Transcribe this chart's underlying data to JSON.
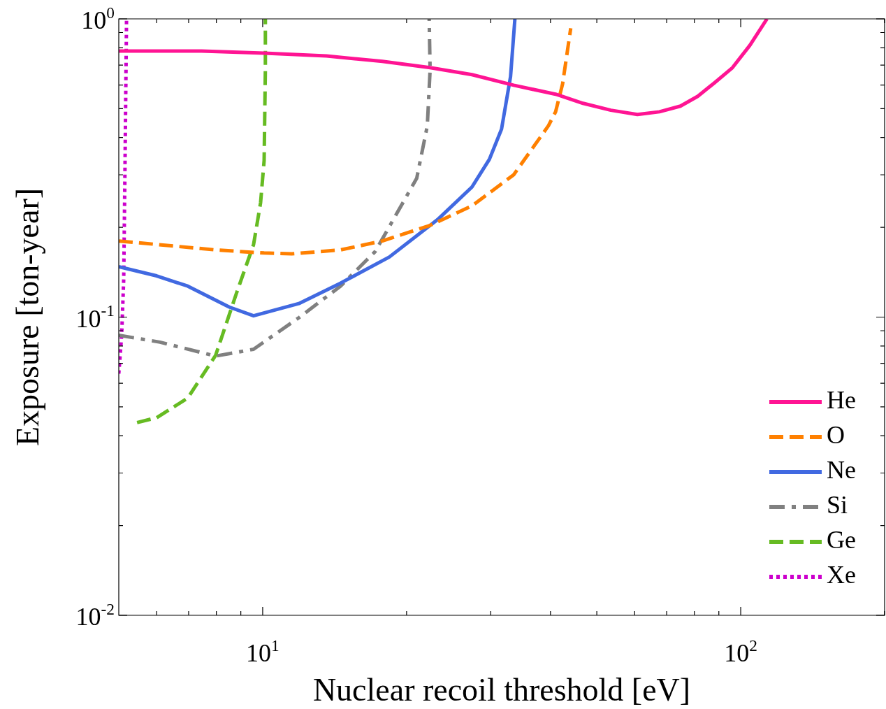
{
  "chart_data": {
    "type": "line",
    "xlabel": "Nuclear recoil threshold [eV]",
    "ylabel": "Exposure [ton-year]",
    "log": "xy",
    "grid": false,
    "legend": "bottom right",
    "marker": "none",
    "xlim": [
      5,
      200
    ],
    "ylim": [
      0.01,
      1
    ],
    "xticks": [
      {
        "value": 6,
        "label": null
      },
      {
        "value": 7,
        "label": null
      },
      {
        "value": 8,
        "label": null
      },
      {
        "value": 9,
        "label": null
      },
      {
        "value": 10,
        "label": "10$^{1}$"
      },
      {
        "value": 20,
        "label": null
      },
      {
        "value": 30,
        "label": null
      },
      {
        "value": 40,
        "label": null
      },
      {
        "value": 50,
        "label": null
      },
      {
        "value": 60,
        "label": null
      },
      {
        "value": 70,
        "label": null
      },
      {
        "value": 80,
        "label": null
      },
      {
        "value": 90,
        "label": null
      },
      {
        "value": 100,
        "label": "10$^{2}$"
      },
      {
        "value": 200,
        "label": null
      }
    ],
    "yticks": [
      {
        "value": 0.01,
        "label": "10$^{-2}$"
      },
      {
        "value": 0.02,
        "label": null
      },
      {
        "value": 0.03,
        "label": null
      },
      {
        "value": 0.04,
        "label": null
      },
      {
        "value": 0.05,
        "label": null
      },
      {
        "value": 0.06,
        "label": null
      },
      {
        "value": 0.07,
        "label": null
      },
      {
        "value": 0.08,
        "label": null
      },
      {
        "value": 0.09,
        "label": null
      },
      {
        "value": 0.1,
        "label": "10$^{-1}$"
      },
      {
        "value": 0.2,
        "label": null
      },
      {
        "value": 0.3,
        "label": null
      },
      {
        "value": 0.4,
        "label": null
      },
      {
        "value": 0.5,
        "label": null
      },
      {
        "value": 0.6,
        "label": null
      },
      {
        "value": 0.7,
        "label": null
      },
      {
        "value": 0.8,
        "label": null
      },
      {
        "value": 0.9,
        "label": null
      },
      {
        "value": 1,
        "label": "10$^{0}$"
      }
    ],
    "series": [
      {
        "name": "He",
        "color": "#ff1493",
        "line_style": "solid",
        "x": [
          5,
          7.45,
          10.07,
          13.6,
          17.8,
          22.4,
          27.4,
          33.5,
          41,
          46.8,
          53.5,
          60.8,
          67.6,
          74.8,
          81.3,
          88.3,
          96.1,
          104.5,
          113.5
        ],
        "values": [
          0.78,
          0.78,
          0.768,
          0.751,
          0.72,
          0.686,
          0.65,
          0.599,
          0.559,
          0.521,
          0.494,
          0.478,
          0.488,
          0.51,
          0.55,
          0.612,
          0.686,
          0.815,
          1
        ]
      },
      {
        "name": "O",
        "color": "#ff8000",
        "line_style": "dashed",
        "x": [
          5,
          7.97,
          10.07,
          11.5,
          14.55,
          17.8,
          22.4,
          27.4,
          33.5,
          39.6,
          41,
          42.4,
          44.1
        ],
        "values": [
          0.18,
          0.168,
          0.164,
          0.163,
          0.168,
          0.18,
          0.203,
          0.236,
          0.3,
          0.438,
          0.488,
          0.605,
          0.93
        ]
      },
      {
        "name": "Ne",
        "color": "#4169e1",
        "line_style": "solid",
        "x": [
          5,
          6,
          6.97,
          8.52,
          9.57,
          11.9,
          14.55,
          18.4,
          23.2,
          27.4,
          29.8,
          31.6,
          33,
          33.7
        ],
        "values": [
          0.1475,
          0.1375,
          0.127,
          0.108,
          0.101,
          0.111,
          0.13,
          0.159,
          0.212,
          0.273,
          0.338,
          0.427,
          0.64,
          1
        ]
      },
      {
        "name": "Si",
        "color": "#808080",
        "line_style": "dashdot",
        "x": [
          5,
          6.1,
          7.97,
          9.57,
          11.9,
          14.55,
          17.2,
          21,
          22.1,
          22.4,
          22.3
        ],
        "values": [
          0.0869,
          0.0824,
          0.074,
          0.078,
          0.0995,
          0.127,
          0.166,
          0.292,
          0.438,
          0.675,
          1
        ]
      },
      {
        "name": "Ge",
        "color": "#66bb22",
        "line_style": "dashed",
        "x": [
          5.46,
          6,
          6.97,
          7.97,
          8.81,
          9.57,
          9.9,
          10.07,
          10.13,
          10.13
        ],
        "values": [
          0.0443,
          0.046,
          0.0535,
          0.0744,
          0.12,
          0.175,
          0.242,
          0.335,
          0.675,
          1
        ]
      },
      {
        "name": "Xe",
        "color": "#cc00cc",
        "line_style": "dotted",
        "x": [
          5,
          5.07,
          5.12,
          5.15,
          5.19
        ],
        "values": [
          0.0646,
          0.0869,
          0.134,
          0.3,
          1
        ]
      }
    ]
  }
}
